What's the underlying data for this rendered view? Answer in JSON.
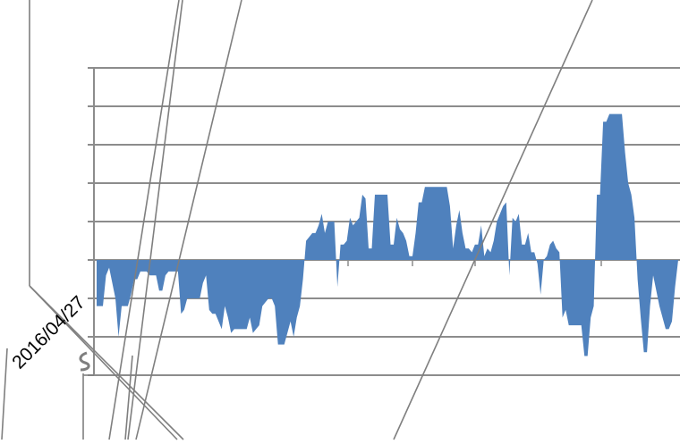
{
  "chart_data": {
    "type": "area",
    "title": "",
    "xlabel": "",
    "ylabel": "",
    "ylim": [
      -3,
      5
    ],
    "y_gridlines": [
      -3,
      -2,
      -1,
      0,
      1,
      2,
      3,
      4,
      5
    ],
    "grid": true,
    "x_tick_labels": [
      "2016/04/27"
    ],
    "series": [
      {
        "color": "#4f81bd",
        "values": [
          -1.2,
          -1.2,
          -1.2,
          -0.4,
          -0.2,
          -0.6,
          -1.0,
          -2.0,
          -1.2,
          -1.2,
          -1.2,
          -0.9,
          -0.5,
          -0.5,
          -0.3,
          -0.3,
          -0.3,
          -0.4,
          -0.4,
          -0.4,
          -0.8,
          -0.8,
          -0.4,
          -0.3,
          -0.3,
          -0.3,
          -0.3,
          -1.4,
          -1.3,
          -1.0,
          -1.0,
          -1.0,
          -1.0,
          -1.0,
          -0.6,
          -0.4,
          -1.3,
          -1.4,
          -1.4,
          -1.6,
          -1.8,
          -1.2,
          -1.5,
          -1.9,
          -1.8,
          -1.8,
          -1.8,
          -1.8,
          -1.8,
          -1.5,
          -1.9,
          -1.8,
          -1.7,
          -1.2,
          -1.1,
          -1.0,
          -1.0,
          -1.2,
          -2.2,
          -2.2,
          -2.2,
          -1.9,
          -1.6,
          -2.0,
          -1.5,
          -1.2,
          -0.5,
          0.5,
          0.6,
          0.7,
          0.7,
          0.9,
          1.2,
          0.7,
          1.0,
          1.0,
          1.0,
          -0.7,
          0.4,
          0.4,
          0.5,
          1.1,
          0.9,
          1.0,
          1.1,
          1.7,
          1.6,
          0.3,
          0.3,
          1.7,
          1.7,
          1.7,
          1.7,
          1.7,
          0.4,
          0.4,
          1.1,
          0.8,
          0.7,
          0.5,
          0.1,
          0.1,
          0.7,
          1.5,
          1.5,
          1.9,
          1.9,
          1.9,
          1.9,
          1.9,
          1.9,
          1.9,
          1.9,
          1.4,
          0.3,
          0.9,
          1.3,
          0.7,
          0.3,
          0.3,
          0.2,
          0.4,
          0.4,
          0.9,
          0.1,
          0.3,
          0.2,
          0.5,
          1.0,
          1.2,
          1.4,
          1.5,
          -0.4,
          1.1,
          1.0,
          1.2,
          0.4,
          0.4,
          0.7,
          0.2,
          0.2,
          -0.1,
          -0.9,
          0.0,
          0.1,
          0.4,
          0.5,
          0.3,
          0.2,
          -1.5,
          -1.3,
          -1.7,
          -1.7,
          -1.7,
          -1.7,
          -1.7,
          -2.5,
          -2.5,
          -1.5,
          -1.2,
          1.7,
          1.7,
          3.6,
          3.6,
          3.8,
          3.8,
          3.8,
          3.8,
          3.8,
          2.8,
          2.0,
          1.7,
          1.1,
          -0.5,
          -1.5,
          -2.4,
          -2.4,
          -1.2,
          -0.4,
          -0.8,
          -1.2,
          -1.5,
          -1.8,
          -1.8,
          -1.6,
          -0.7,
          0.0
        ]
      }
    ]
  }
}
